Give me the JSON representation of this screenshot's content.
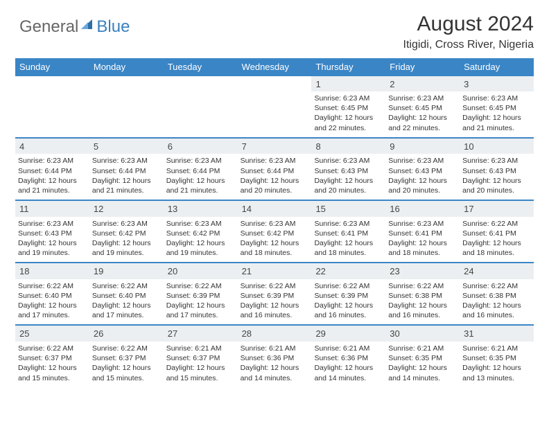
{
  "brand": {
    "part1": "General",
    "part2": "Blue",
    "color1": "#666666",
    "color2": "#3a7fbf"
  },
  "title": "August 2024",
  "location": "Itigidi, Cross River, Nigeria",
  "header_bg": "#3a85c6",
  "band_bg": "#eceff1",
  "day_headers": [
    "Sunday",
    "Monday",
    "Tuesday",
    "Wednesday",
    "Thursday",
    "Friday",
    "Saturday"
  ],
  "weeks": [
    [
      null,
      null,
      null,
      null,
      {
        "n": "1",
        "sunrise": "6:23 AM",
        "sunset": "6:45 PM",
        "daylight": "12 hours and 22 minutes."
      },
      {
        "n": "2",
        "sunrise": "6:23 AM",
        "sunset": "6:45 PM",
        "daylight": "12 hours and 22 minutes."
      },
      {
        "n": "3",
        "sunrise": "6:23 AM",
        "sunset": "6:45 PM",
        "daylight": "12 hours and 21 minutes."
      }
    ],
    [
      {
        "n": "4",
        "sunrise": "6:23 AM",
        "sunset": "6:44 PM",
        "daylight": "12 hours and 21 minutes."
      },
      {
        "n": "5",
        "sunrise": "6:23 AM",
        "sunset": "6:44 PM",
        "daylight": "12 hours and 21 minutes."
      },
      {
        "n": "6",
        "sunrise": "6:23 AM",
        "sunset": "6:44 PM",
        "daylight": "12 hours and 21 minutes."
      },
      {
        "n": "7",
        "sunrise": "6:23 AM",
        "sunset": "6:44 PM",
        "daylight": "12 hours and 20 minutes."
      },
      {
        "n": "8",
        "sunrise": "6:23 AM",
        "sunset": "6:43 PM",
        "daylight": "12 hours and 20 minutes."
      },
      {
        "n": "9",
        "sunrise": "6:23 AM",
        "sunset": "6:43 PM",
        "daylight": "12 hours and 20 minutes."
      },
      {
        "n": "10",
        "sunrise": "6:23 AM",
        "sunset": "6:43 PM",
        "daylight": "12 hours and 20 minutes."
      }
    ],
    [
      {
        "n": "11",
        "sunrise": "6:23 AM",
        "sunset": "6:43 PM",
        "daylight": "12 hours and 19 minutes."
      },
      {
        "n": "12",
        "sunrise": "6:23 AM",
        "sunset": "6:42 PM",
        "daylight": "12 hours and 19 minutes."
      },
      {
        "n": "13",
        "sunrise": "6:23 AM",
        "sunset": "6:42 PM",
        "daylight": "12 hours and 19 minutes."
      },
      {
        "n": "14",
        "sunrise": "6:23 AM",
        "sunset": "6:42 PM",
        "daylight": "12 hours and 18 minutes."
      },
      {
        "n": "15",
        "sunrise": "6:23 AM",
        "sunset": "6:41 PM",
        "daylight": "12 hours and 18 minutes."
      },
      {
        "n": "16",
        "sunrise": "6:23 AM",
        "sunset": "6:41 PM",
        "daylight": "12 hours and 18 minutes."
      },
      {
        "n": "17",
        "sunrise": "6:22 AM",
        "sunset": "6:41 PM",
        "daylight": "12 hours and 18 minutes."
      }
    ],
    [
      {
        "n": "18",
        "sunrise": "6:22 AM",
        "sunset": "6:40 PM",
        "daylight": "12 hours and 17 minutes."
      },
      {
        "n": "19",
        "sunrise": "6:22 AM",
        "sunset": "6:40 PM",
        "daylight": "12 hours and 17 minutes."
      },
      {
        "n": "20",
        "sunrise": "6:22 AM",
        "sunset": "6:39 PM",
        "daylight": "12 hours and 17 minutes."
      },
      {
        "n": "21",
        "sunrise": "6:22 AM",
        "sunset": "6:39 PM",
        "daylight": "12 hours and 16 minutes."
      },
      {
        "n": "22",
        "sunrise": "6:22 AM",
        "sunset": "6:39 PM",
        "daylight": "12 hours and 16 minutes."
      },
      {
        "n": "23",
        "sunrise": "6:22 AM",
        "sunset": "6:38 PM",
        "daylight": "12 hours and 16 minutes."
      },
      {
        "n": "24",
        "sunrise": "6:22 AM",
        "sunset": "6:38 PM",
        "daylight": "12 hours and 16 minutes."
      }
    ],
    [
      {
        "n": "25",
        "sunrise": "6:22 AM",
        "sunset": "6:37 PM",
        "daylight": "12 hours and 15 minutes."
      },
      {
        "n": "26",
        "sunrise": "6:22 AM",
        "sunset": "6:37 PM",
        "daylight": "12 hours and 15 minutes."
      },
      {
        "n": "27",
        "sunrise": "6:21 AM",
        "sunset": "6:37 PM",
        "daylight": "12 hours and 15 minutes."
      },
      {
        "n": "28",
        "sunrise": "6:21 AM",
        "sunset": "6:36 PM",
        "daylight": "12 hours and 14 minutes."
      },
      {
        "n": "29",
        "sunrise": "6:21 AM",
        "sunset": "6:36 PM",
        "daylight": "12 hours and 14 minutes."
      },
      {
        "n": "30",
        "sunrise": "6:21 AM",
        "sunset": "6:35 PM",
        "daylight": "12 hours and 14 minutes."
      },
      {
        "n": "31",
        "sunrise": "6:21 AM",
        "sunset": "6:35 PM",
        "daylight": "12 hours and 13 minutes."
      }
    ]
  ],
  "labels": {
    "sunrise": "Sunrise:",
    "sunset": "Sunset:",
    "daylight": "Daylight:"
  }
}
